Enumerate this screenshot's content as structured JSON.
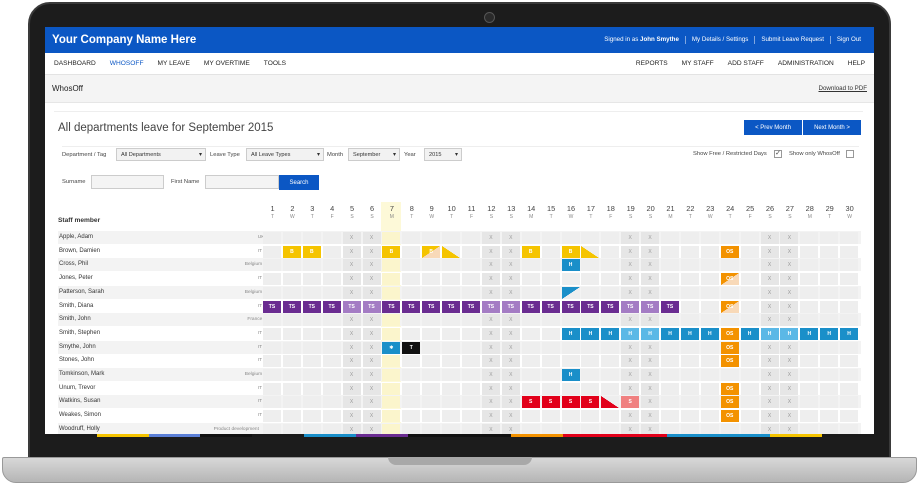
{
  "header": {
    "brand": "Your Company Name Here",
    "signed_in_prefix": "Signed in as",
    "user": "John Smythe",
    "links": [
      "My Details / Settings",
      "Submit Leave Request",
      "Sign Out"
    ]
  },
  "nav": {
    "left": [
      "DASHBOARD",
      "WHOSOFF",
      "MY LEAVE",
      "MY OVERTIME",
      "TOOLS"
    ],
    "right": [
      "REPORTS",
      "MY STAFF",
      "ADD STAFF",
      "ADMINISTRATION",
      "HELP"
    ]
  },
  "subheader": {
    "title": "WhosOff",
    "pdf_link": "Download to PDF"
  },
  "page": {
    "title": "All departments leave for September 2015",
    "prev": "< Prev Month",
    "next": "Next Month >"
  },
  "filters": {
    "dept_label": "Department / Tag",
    "dept_value": "All Departments",
    "leave_label": "Leave Type",
    "leave_value": "All Leave Types",
    "month_label": "Month",
    "month_value": "September",
    "year_label": "Year",
    "year_value": "2015",
    "show_free": "Show Free / Restricted Days",
    "show_only": "Show only WhosOff",
    "surname_label": "Surname",
    "firstname_label": "First Name",
    "search": "Search"
  },
  "calendar": {
    "staff_header": "Staff member",
    "days": [
      [
        "1",
        "T"
      ],
      [
        "2",
        "W"
      ],
      [
        "3",
        "T"
      ],
      [
        "4",
        "F"
      ],
      [
        "5",
        "S"
      ],
      [
        "6",
        "S"
      ],
      [
        "7",
        "M"
      ],
      [
        "8",
        "T"
      ],
      [
        "9",
        "W"
      ],
      [
        "10",
        "T"
      ],
      [
        "11",
        "F"
      ],
      [
        "12",
        "S"
      ],
      [
        "13",
        "S"
      ],
      [
        "14",
        "M"
      ],
      [
        "15",
        "T"
      ],
      [
        "16",
        "W"
      ],
      [
        "17",
        "T"
      ],
      [
        "18",
        "F"
      ],
      [
        "19",
        "S"
      ],
      [
        "20",
        "S"
      ],
      [
        "21",
        "M"
      ],
      [
        "22",
        "T"
      ],
      [
        "23",
        "W"
      ],
      [
        "24",
        "T"
      ],
      [
        "25",
        "F"
      ],
      [
        "26",
        "S"
      ],
      [
        "27",
        "S"
      ],
      [
        "28",
        "M"
      ],
      [
        "29",
        "T"
      ],
      [
        "30",
        "W"
      ]
    ],
    "staff": [
      {
        "name": "Apple, Adam",
        "dept": "UK"
      },
      {
        "name": "Brown, Damien",
        "dept": "IT"
      },
      {
        "name": "Cross, Phil",
        "dept": "Belgium"
      },
      {
        "name": "Jones, Peter",
        "dept": "IT"
      },
      {
        "name": "Patterson, Sarah",
        "dept": "Belgium"
      },
      {
        "name": "Smith, Diana",
        "dept": "IT"
      },
      {
        "name": "Smith, John",
        "dept": "France"
      },
      {
        "name": "Smith, Stephen",
        "dept": "IT"
      },
      {
        "name": "Smythe, John",
        "dept": "IT"
      },
      {
        "name": "Stones, John",
        "dept": "IT"
      },
      {
        "name": "Tomkinson, Mark",
        "dept": "Belgium"
      },
      {
        "name": "Unum, Trevor",
        "dept": "IT"
      },
      {
        "name": "Watkins, Susan",
        "dept": "IT"
      },
      {
        "name": "Weakes, Simon",
        "dept": "IT"
      },
      {
        "name": "Woodruff, Holly",
        "dept": "Product development"
      }
    ],
    "weekend_mark": "X",
    "leave": [
      [],
      [
        [
          2,
          "B",
          "#f5c400"
        ],
        [
          3,
          "B",
          "#f5c400"
        ],
        [
          7,
          "B",
          "#f5c400"
        ],
        [
          9,
          "B",
          "#f5c400",
          "half"
        ],
        [
          10,
          "",
          "#f5c400",
          "tri"
        ],
        [
          14,
          "B",
          "#f5c400"
        ],
        [
          16,
          "B",
          "#f5c400"
        ],
        [
          17,
          "",
          "#f5c400",
          "tri"
        ],
        [
          24,
          "OS",
          "#f39200"
        ]
      ],
      [
        [
          16,
          "H",
          "#1a8fc9"
        ]
      ],
      [
        [
          24,
          "OS",
          "#f39200",
          "half"
        ]
      ],
      [
        [
          16,
          "",
          "#1a8fc9",
          "tri2"
        ]
      ],
      [
        [
          1,
          "TS",
          "#6a2c91"
        ],
        [
          2,
          "TS",
          "#6a2c91"
        ],
        [
          3,
          "TS",
          "#6a2c91"
        ],
        [
          4,
          "TS",
          "#6a2c91"
        ],
        [
          5,
          "TS",
          "#a47cc4"
        ],
        [
          6,
          "TS",
          "#a47cc4"
        ],
        [
          7,
          "TS",
          "#6a2c91"
        ],
        [
          8,
          "TS",
          "#6a2c91"
        ],
        [
          9,
          "TS",
          "#6a2c91"
        ],
        [
          10,
          "TS",
          "#6a2c91"
        ],
        [
          11,
          "TS",
          "#6a2c91"
        ],
        [
          12,
          "TS",
          "#a47cc4"
        ],
        [
          13,
          "TS",
          "#a47cc4"
        ],
        [
          14,
          "TS",
          "#6a2c91"
        ],
        [
          15,
          "TS",
          "#6a2c91"
        ],
        [
          16,
          "TS",
          "#6a2c91"
        ],
        [
          17,
          "TS",
          "#6a2c91"
        ],
        [
          18,
          "TS",
          "#6a2c91"
        ],
        [
          19,
          "TS",
          "#a47cc4"
        ],
        [
          20,
          "TS",
          "#a47cc4"
        ],
        [
          21,
          "TS",
          "#6a2c91"
        ],
        [
          24,
          "OS",
          "#f39200",
          "half"
        ]
      ],
      [],
      [
        [
          16,
          "H",
          "#1a8fc9"
        ],
        [
          17,
          "H",
          "#1a8fc9"
        ],
        [
          18,
          "H",
          "#1a8fc9"
        ],
        [
          19,
          "H",
          "#5bb8e6"
        ],
        [
          20,
          "H",
          "#5bb8e6"
        ],
        [
          21,
          "H",
          "#1a8fc9"
        ],
        [
          22,
          "H",
          "#1a8fc9"
        ],
        [
          23,
          "H",
          "#1a8fc9"
        ],
        [
          24,
          "OS",
          "#f39200"
        ],
        [
          25,
          "H",
          "#1a8fc9"
        ],
        [
          26,
          "H",
          "#5bb8e6"
        ],
        [
          27,
          "H",
          "#5bb8e6"
        ],
        [
          28,
          "H",
          "#1a8fc9"
        ],
        [
          29,
          "H",
          "#1a8fc9"
        ],
        [
          30,
          "H",
          "#1a8fc9"
        ]
      ],
      [
        [
          7,
          "✱",
          "#1a8fc9"
        ],
        [
          8,
          "T",
          "#111111"
        ],
        [
          24,
          "OS",
          "#f39200"
        ]
      ],
      [
        [
          24,
          "OS",
          "#f39200"
        ]
      ],
      [
        [
          16,
          "H",
          "#1a8fc9"
        ]
      ],
      [
        [
          24,
          "OS",
          "#f39200"
        ]
      ],
      [
        [
          14,
          "S",
          "#e2001a"
        ],
        [
          15,
          "S",
          "#e2001a"
        ],
        [
          16,
          "S",
          "#e2001a"
        ],
        [
          17,
          "S",
          "#e2001a"
        ],
        [
          18,
          "",
          "#e2001a",
          "tri3"
        ],
        [
          19,
          "S",
          "#f08080"
        ],
        [
          24,
          "OS",
          "#f39200"
        ]
      ],
      [
        [
          24,
          "OS",
          "#f39200"
        ]
      ],
      []
    ]
  },
  "colors": {
    "brand_blue": "#0b57c4"
  }
}
